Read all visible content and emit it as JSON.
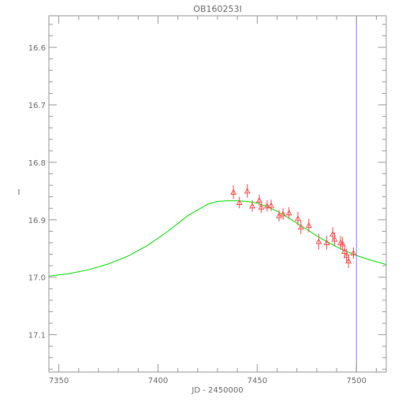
{
  "chart_data": {
    "type": "scatter",
    "title": "OB160253I",
    "xlabel": "JD - 2450000",
    "ylabel": "I",
    "xlim": [
      7345,
      7515
    ],
    "ylim": [
      17.165,
      16.545
    ],
    "y_inverted": true,
    "grid": false,
    "x_ticks": [
      7350,
      7400,
      7450,
      7500
    ],
    "x_tick_labels": [
      "7350",
      "7400",
      "7450",
      "7500"
    ],
    "y_ticks": [
      16.6,
      16.7,
      16.8,
      16.9,
      17.0,
      17.1
    ],
    "y_tick_labels": [
      "16.6",
      "16.7",
      "16.8",
      "16.9",
      "17.0",
      "17.1"
    ],
    "vertical_line_x": 7500,
    "colors": {
      "points": "#ff4a4a",
      "model": "#00e000",
      "vline": "#7f7fff",
      "frame": "#9a9a9a",
      "text": "#6e6e6e"
    },
    "series": [
      {
        "kind": "points",
        "marker": "triangle",
        "x": [
          7438,
          7441,
          7445,
          7447.5,
          7451,
          7452,
          7455,
          7457,
          7461,
          7463,
          7466,
          7470.5,
          7472,
          7476,
          7481,
          7485,
          7488,
          7489,
          7492,
          7493,
          7494,
          7495,
          7496,
          7498.5
        ],
        "y": [
          16.852,
          16.87,
          16.85,
          16.876,
          16.866,
          16.878,
          16.876,
          16.875,
          16.893,
          16.89,
          16.888,
          16.898,
          16.913,
          16.91,
          16.938,
          16.94,
          16.925,
          16.934,
          16.94,
          16.942,
          16.955,
          16.962,
          16.972,
          16.958
        ],
        "yerr": [
          0.012,
          0.01,
          0.012,
          0.01,
          0.01,
          0.01,
          0.01,
          0.01,
          0.01,
          0.01,
          0.01,
          0.012,
          0.012,
          0.012,
          0.014,
          0.012,
          0.012,
          0.012,
          0.012,
          0.012,
          0.012,
          0.012,
          0.012,
          0.01
        ]
      },
      {
        "kind": "line",
        "x": [
          7345,
          7355,
          7365,
          7375,
          7385,
          7395,
          7405,
          7415,
          7425,
          7430,
          7435,
          7440,
          7445,
          7450,
          7455,
          7460,
          7465,
          7470,
          7475,
          7480,
          7485,
          7490,
          7495,
          7500,
          7505,
          7510,
          7515
        ],
        "y": [
          16.998,
          16.994,
          16.987,
          16.977,
          16.963,
          16.944,
          16.92,
          16.893,
          16.873,
          16.868,
          16.867,
          16.867,
          16.868,
          16.871,
          16.877,
          16.885,
          16.895,
          16.906,
          16.917,
          16.928,
          16.938,
          16.947,
          16.955,
          16.962,
          16.968,
          16.973,
          16.978
        ]
      }
    ]
  }
}
